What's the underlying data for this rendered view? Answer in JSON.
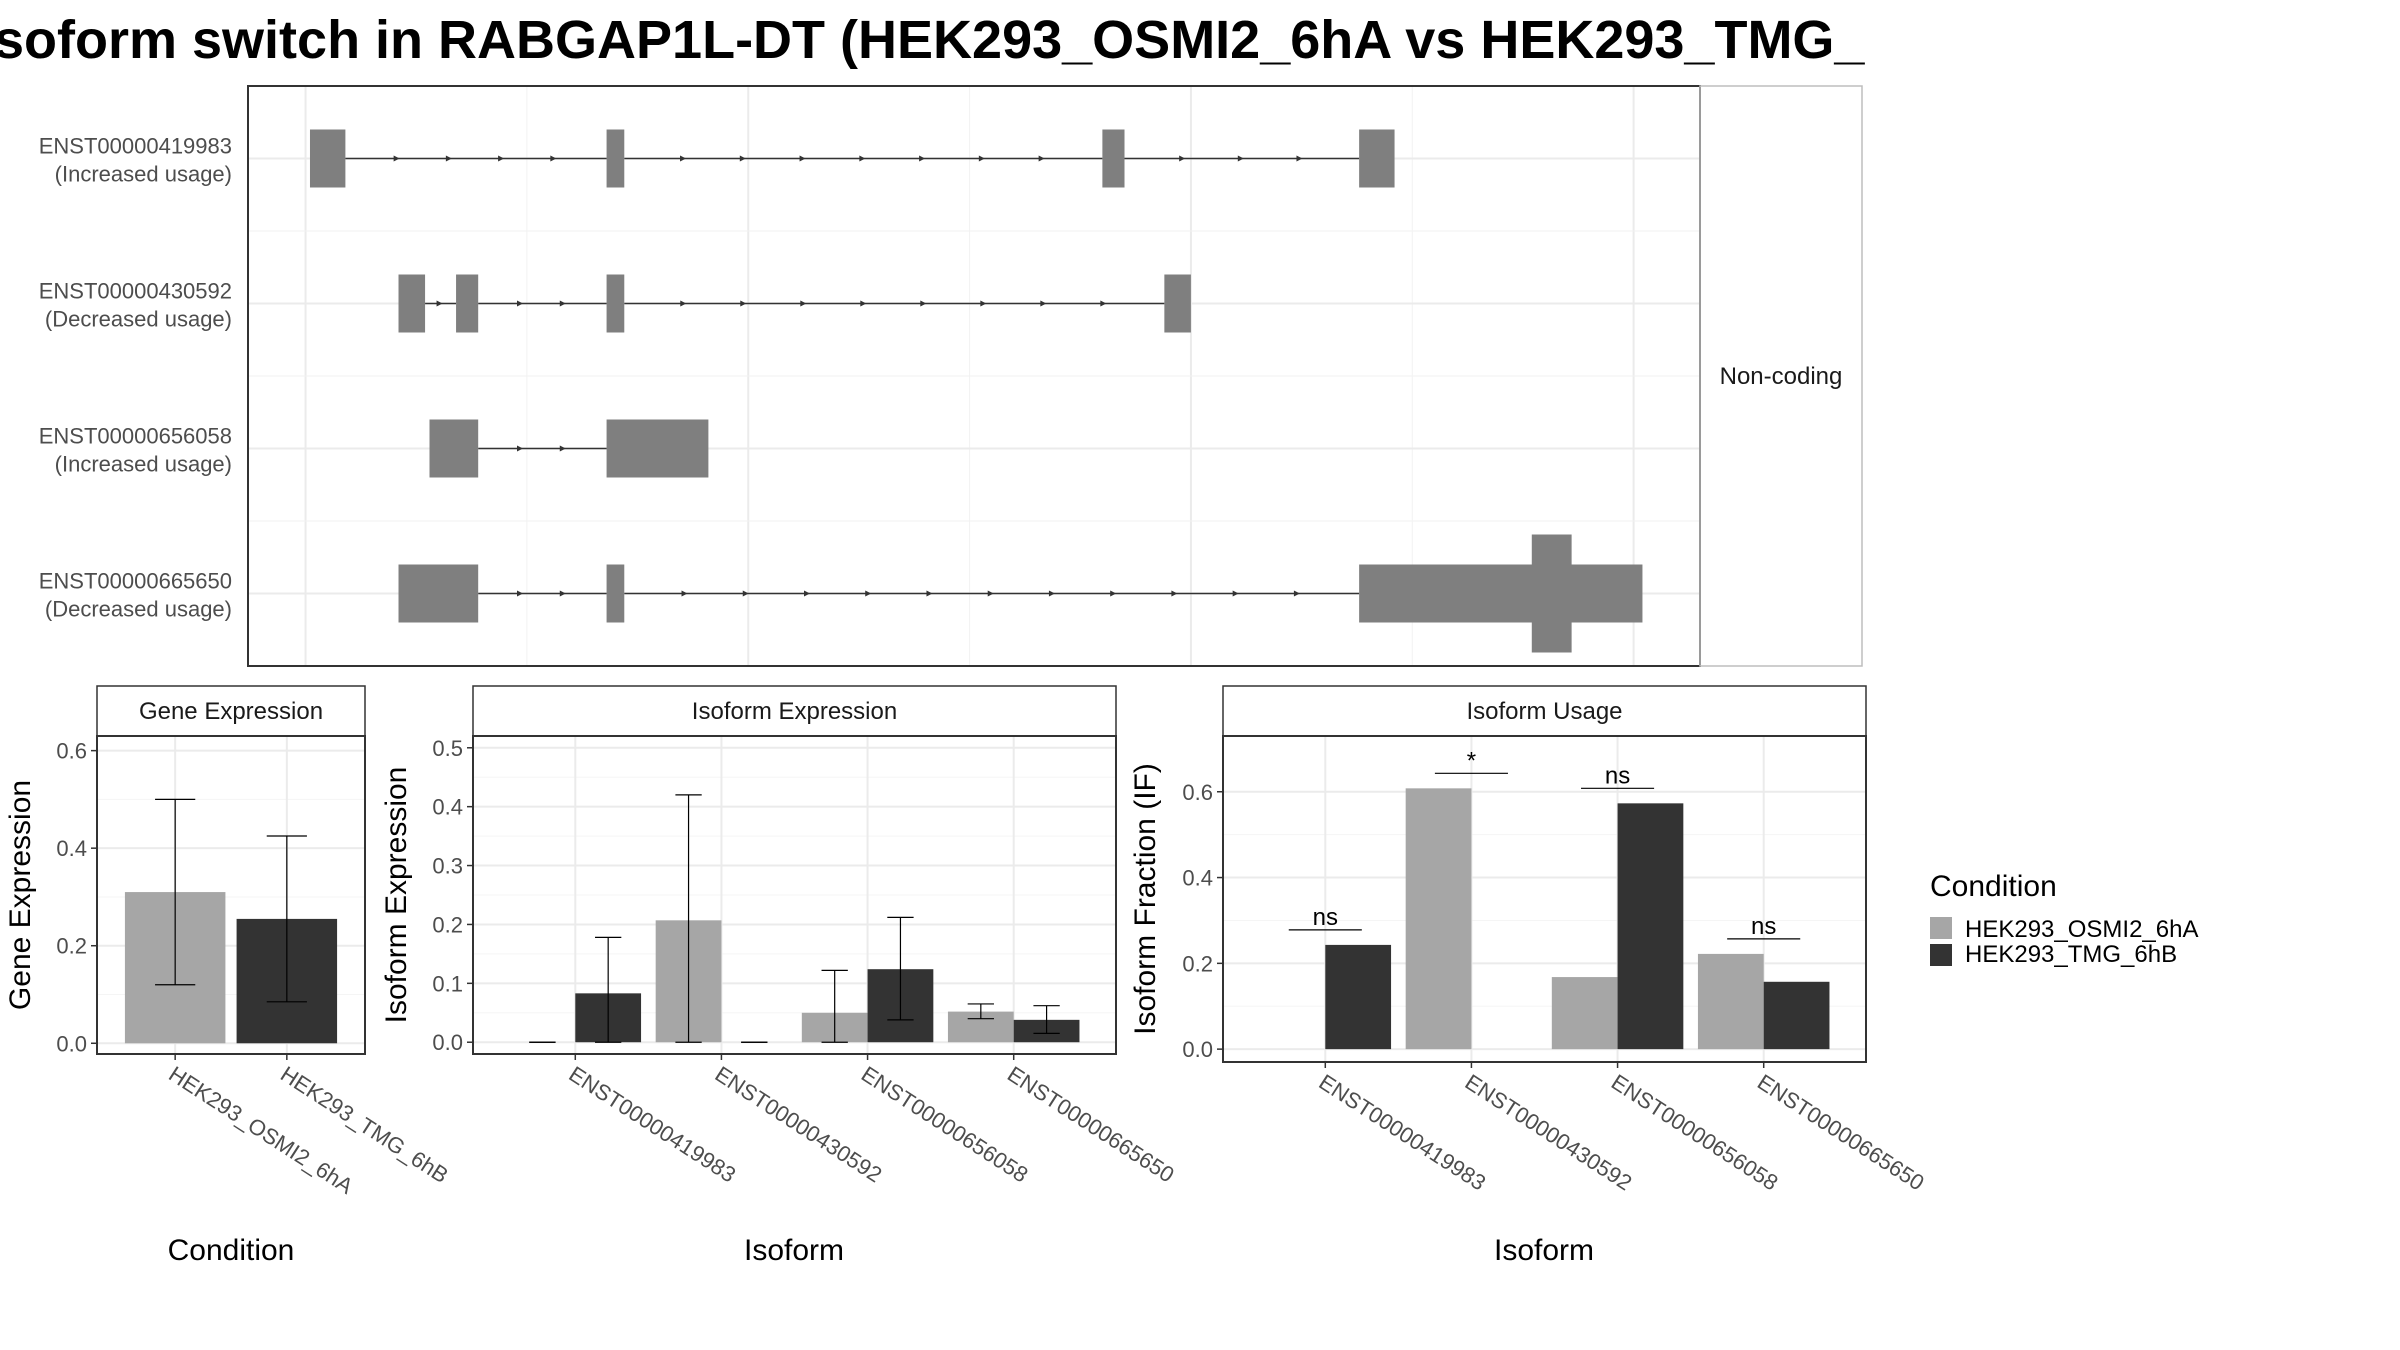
{
  "title": "soform switch in RABGAP1L-DT (HEK293_OSMI2_6hA vs HEK293_TMG_",
  "colors": {
    "cond_a": "#a6a6a6",
    "cond_b": "#333333",
    "exon": "#7f7f7f"
  },
  "chart_data": [
    {
      "type": "gene-structure",
      "strip": "Non-coding",
      "isoforms": [
        {
          "id": "ENST00000419983",
          "status": "(Increased usage)",
          "exons": [
            [
              1,
              9
            ],
            [
              68,
              72
            ],
            [
              180,
              185
            ],
            [
              238,
              246
            ]
          ],
          "tall": []
        },
        {
          "id": "ENST00000430592",
          "status": "(Decreased usage)",
          "exons": [
            [
              21,
              27
            ],
            [
              34,
              39
            ],
            [
              68,
              72
            ],
            [
              194,
              200
            ]
          ],
          "tall": []
        },
        {
          "id": "ENST00000656058",
          "status": "(Increased usage)",
          "exons": [
            [
              28,
              39
            ],
            [
              68,
              91
            ]
          ],
          "tall": []
        },
        {
          "id": "ENST00000665650",
          "status": "(Decreased usage)",
          "exons": [
            [
              21,
              39
            ],
            [
              68,
              72
            ],
            [
              238,
              302
            ]
          ],
          "tall": [
            [
              277,
              286
            ]
          ]
        }
      ],
      "xlim": [
        -13,
        315
      ]
    },
    {
      "type": "bar",
      "strip": "Gene Expression",
      "categories": [
        "HEK293_OSMI2_6hA",
        "HEK293_TMG_6hB"
      ],
      "values": [
        0.31,
        0.255
      ],
      "err_low": [
        0.12,
        0.085
      ],
      "err_high": [
        0.5,
        0.425
      ],
      "ylim": [
        -0.022,
        0.63
      ],
      "yticks": [
        "0.0",
        "0.2",
        "0.4",
        "0.6"
      ],
      "xlabel": "Condition",
      "ylabel": "Gene Expression"
    },
    {
      "type": "bar",
      "strip": "Isoform Expression",
      "categories": [
        "ENST00000419983",
        "ENST00000430592",
        "ENST00000656058",
        "ENST00000665650"
      ],
      "series": [
        {
          "name": "HEK293_OSMI2_6hA",
          "values": [
            0.0,
            0.207,
            0.05,
            0.052
          ],
          "err_low": [
            0.0,
            0.0,
            0.0,
            0.04
          ],
          "err_high": [
            0.0,
            0.42,
            0.122,
            0.065
          ]
        },
        {
          "name": "HEK293_TMG_6hB",
          "values": [
            0.083,
            0.0,
            0.124,
            0.038
          ],
          "err_low": [
            0.0,
            0.0,
            0.038,
            0.015
          ],
          "err_high": [
            0.178,
            0.0,
            0.212,
            0.062
          ]
        }
      ],
      "ylim": [
        -0.02,
        0.52
      ],
      "yticks": [
        "0.0",
        "0.1",
        "0.2",
        "0.3",
        "0.4",
        "0.5"
      ],
      "xlabel": "Isoform",
      "ylabel": "Isoform Expression"
    },
    {
      "type": "bar",
      "strip": "Isoform Usage",
      "categories": [
        "ENST00000419983",
        "ENST00000430592",
        "ENST00000656058",
        "ENST00000665650"
      ],
      "series": [
        {
          "name": "HEK293_OSMI2_6hA",
          "values": [
            0.0,
            0.608,
            0.168,
            0.222
          ]
        },
        {
          "name": "HEK293_TMG_6hB",
          "values": [
            0.243,
            0.0,
            0.573,
            0.157
          ]
        }
      ],
      "significance": [
        "ns",
        "*",
        "ns",
        "ns"
      ],
      "ylim": [
        -0.03,
        0.73
      ],
      "yticks": [
        "0.0",
        "0.2",
        "0.4",
        "0.6"
      ],
      "xlabel": "Isoform",
      "ylabel": "Isoform Fraction (IF)"
    }
  ],
  "legend": {
    "title": "Condition",
    "items": [
      "HEK293_OSMI2_6hA",
      "HEK293_TMG_6hB"
    ]
  }
}
